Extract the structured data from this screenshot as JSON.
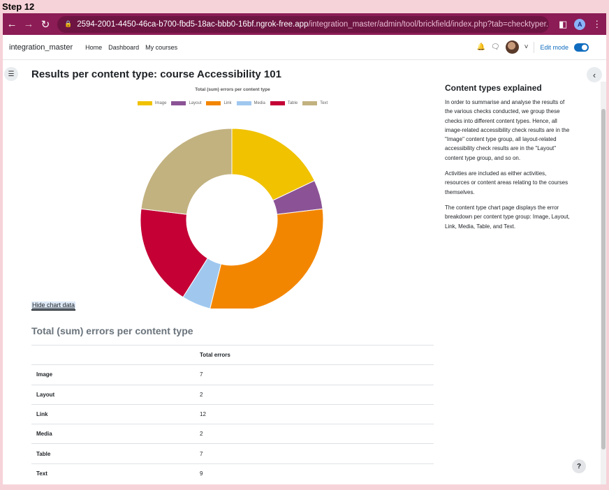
{
  "step": "Step 12",
  "browser": {
    "url_host": "2594-2001-4450-46ca-b700-fbd5-18ac-bbb0-16bf.ngrok-free.app",
    "url_path": "/integration_master/admin/tool/brickfield/index.php?tab=checktyper...",
    "profile_initial": "A"
  },
  "nav": {
    "site_name": "integration_master",
    "links": [
      "Home",
      "Dashboard",
      "My courses"
    ],
    "edit_mode_label": "Edit mode"
  },
  "page": {
    "title": "Results per content type: course Accessibility 101",
    "hide_chart_label": "Hide chart data",
    "table_heading": "Total (sum) errors per content type",
    "table_column_header": "Total errors",
    "help_label": "?"
  },
  "chart_data": {
    "type": "pie",
    "title": "Total (sum) errors per content type",
    "categories": [
      "Image",
      "Layout",
      "Link",
      "Media",
      "Table",
      "Text"
    ],
    "values": [
      7,
      2,
      12,
      2,
      7,
      9
    ],
    "colors": [
      "#f0c200",
      "#8b5395",
      "#f38600",
      "#a0c8ef",
      "#c40035",
      "#c2b280"
    ],
    "legend_position": "top"
  },
  "table_rows": [
    {
      "label": "Image",
      "value": "7"
    },
    {
      "label": "Layout",
      "value": "2"
    },
    {
      "label": "Link",
      "value": "12"
    },
    {
      "label": "Media",
      "value": "2"
    },
    {
      "label": "Table",
      "value": "7"
    },
    {
      "label": "Text",
      "value": "9"
    }
  ],
  "side_panel": {
    "title": "Content types explained",
    "paragraphs": [
      "In order to summarise and analyse the results of the various checks conducted, we group these checks into different content types. Hence, all image-related accessibility check results are in the \"Image\" content type group, all layout-related accessibility check results are in the \"Layout\" content type group, and so on.",
      "Activities are included as either activities, resources or content areas relating to the courses themselves.",
      "The content type chart page displays the error breakdown per content type group: Image, Layout, Link, Media, Table, and Text."
    ]
  }
}
